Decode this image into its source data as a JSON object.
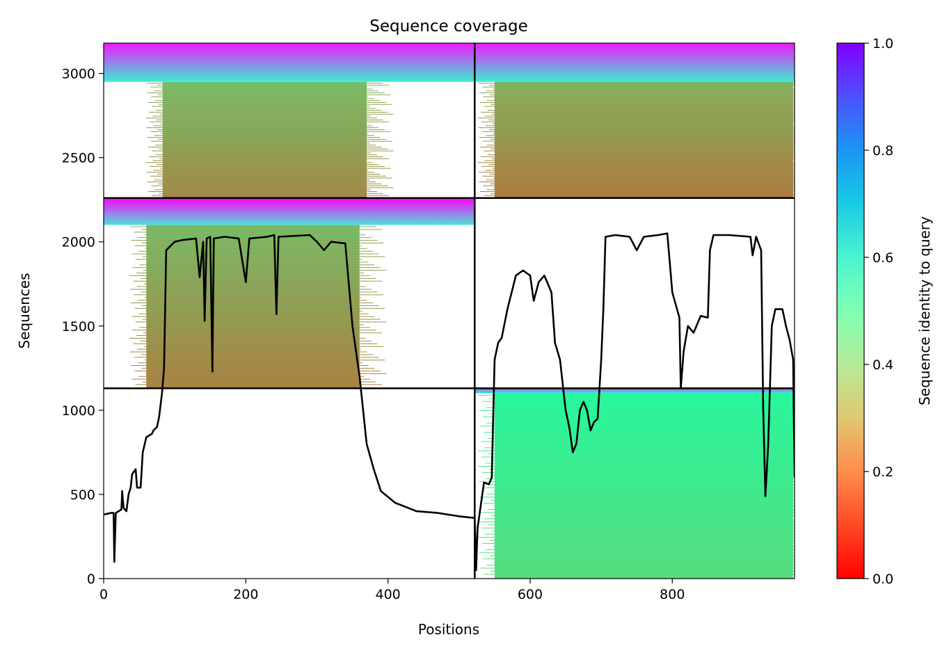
{
  "chart_data": {
    "type": "heatmap",
    "title": "Sequence coverage",
    "xlabel": "Positions",
    "ylabel": "Sequences",
    "xlim": [
      0,
      972
    ],
    "ylim": [
      0,
      3180
    ],
    "xticks": [
      0,
      200,
      400,
      600,
      800
    ],
    "yticks": [
      0,
      500,
      1000,
      1500,
      2000,
      2500,
      3000
    ],
    "colorbar": {
      "label": "Sequence identity to query",
      "range": [
        0.0,
        1.0
      ],
      "ticks": [
        "0.0",
        "0.2",
        "0.4",
        "0.6",
        "0.8",
        "1.0"
      ],
      "colormap": "rainbow"
    },
    "domain_boundaries": {
      "x": [
        522
      ],
      "y": [
        1130,
        2260
      ]
    },
    "blocks": [
      {
        "x": [
          0,
          522
        ],
        "y": [
          2260,
          3180
        ],
        "seq_split": 2950,
        "covered_x": [
          83,
          370
        ],
        "identity_top": 0.62,
        "identity_bottom": 0.18
      },
      {
        "x": [
          522,
          972
        ],
        "y": [
          2260,
          3180
        ],
        "seq_split": 2950,
        "covered_x": [
          550,
          970
        ],
        "identity_top": 0.62,
        "identity_bottom": 0.16
      },
      {
        "x": [
          0,
          522
        ],
        "y": [
          1130,
          2260
        ],
        "seq_split": 2100,
        "covered_x": [
          60,
          360
        ],
        "identity_top": 0.65,
        "identity_bottom": 0.17
      },
      {
        "x": [
          522,
          972
        ],
        "y": [
          0,
          1130
        ],
        "seq_split": 1100,
        "covered_x": [
          550,
          970
        ],
        "identity_top": 0.55,
        "identity_bottom": 0.33
      }
    ],
    "coverage_line": {
      "name": "coverage",
      "points": [
        [
          0,
          380
        ],
        [
          10,
          390
        ],
        [
          14,
          390
        ],
        [
          15,
          100
        ],
        [
          17,
          390
        ],
        [
          25,
          410
        ],
        [
          26,
          520
        ],
        [
          28,
          420
        ],
        [
          32,
          400
        ],
        [
          35,
          500
        ],
        [
          38,
          540
        ],
        [
          40,
          620
        ],
        [
          45,
          650
        ],
        [
          47,
          540
        ],
        [
          52,
          540
        ],
        [
          55,
          750
        ],
        [
          60,
          840
        ],
        [
          68,
          860
        ],
        [
          70,
          880
        ],
        [
          75,
          900
        ],
        [
          78,
          960
        ],
        [
          82,
          1100
        ],
        [
          85,
          1250
        ],
        [
          88,
          1950
        ],
        [
          95,
          1980
        ],
        [
          100,
          2000
        ],
        [
          110,
          2010
        ],
        [
          130,
          2020
        ],
        [
          135,
          1790
        ],
        [
          140,
          2000
        ],
        [
          142,
          1530
        ],
        [
          145,
          2020
        ],
        [
          150,
          2030
        ],
        [
          153,
          1230
        ],
        [
          155,
          2020
        ],
        [
          170,
          2030
        ],
        [
          190,
          2020
        ],
        [
          200,
          1760
        ],
        [
          205,
          2020
        ],
        [
          230,
          2030
        ],
        [
          240,
          2040
        ],
        [
          243,
          1570
        ],
        [
          246,
          2030
        ],
        [
          290,
          2040
        ],
        [
          300,
          2000
        ],
        [
          310,
          1950
        ],
        [
          320,
          2000
        ],
        [
          340,
          1990
        ],
        [
          350,
          1500
        ],
        [
          360,
          1200
        ],
        [
          370,
          800
        ],
        [
          380,
          650
        ],
        [
          390,
          520
        ],
        [
          410,
          450
        ],
        [
          440,
          400
        ],
        [
          470,
          390
        ],
        [
          500,
          370
        ],
        [
          522,
          360
        ],
        [
          524,
          50
        ],
        [
          526,
          300
        ],
        [
          535,
          570
        ],
        [
          542,
          560
        ],
        [
          546,
          600
        ],
        [
          550,
          1300
        ],
        [
          555,
          1400
        ],
        [
          560,
          1430
        ],
        [
          568,
          1600
        ],
        [
          580,
          1800
        ],
        [
          590,
          1830
        ],
        [
          600,
          1800
        ],
        [
          605,
          1650
        ],
        [
          612,
          1760
        ],
        [
          620,
          1800
        ],
        [
          630,
          1700
        ],
        [
          635,
          1400
        ],
        [
          642,
          1300
        ],
        [
          650,
          1000
        ],
        [
          655,
          900
        ],
        [
          660,
          750
        ],
        [
          665,
          800
        ],
        [
          670,
          1000
        ],
        [
          675,
          1050
        ],
        [
          680,
          1000
        ],
        [
          685,
          880
        ],
        [
          690,
          930
        ],
        [
          695,
          950
        ],
        [
          700,
          1300
        ],
        [
          703,
          1600
        ],
        [
          706,
          2030
        ],
        [
          720,
          2040
        ],
        [
          740,
          2030
        ],
        [
          750,
          1950
        ],
        [
          760,
          2030
        ],
        [
          780,
          2040
        ],
        [
          793,
          2050
        ],
        [
          800,
          1700
        ],
        [
          810,
          1550
        ],
        [
          812,
          1130
        ],
        [
          816,
          1350
        ],
        [
          822,
          1500
        ],
        [
          830,
          1460
        ],
        [
          840,
          1560
        ],
        [
          850,
          1550
        ],
        [
          853,
          1950
        ],
        [
          858,
          2040
        ],
        [
          880,
          2040
        ],
        [
          910,
          2030
        ],
        [
          913,
          1920
        ],
        [
          918,
          2030
        ],
        [
          925,
          1950
        ],
        [
          928,
          1000
        ],
        [
          931,
          490
        ],
        [
          935,
          800
        ],
        [
          940,
          1500
        ],
        [
          945,
          1600
        ],
        [
          955,
          1600
        ],
        [
          960,
          1500
        ],
        [
          965,
          1420
        ],
        [
          970,
          1300
        ],
        [
          972,
          600
        ]
      ]
    }
  }
}
